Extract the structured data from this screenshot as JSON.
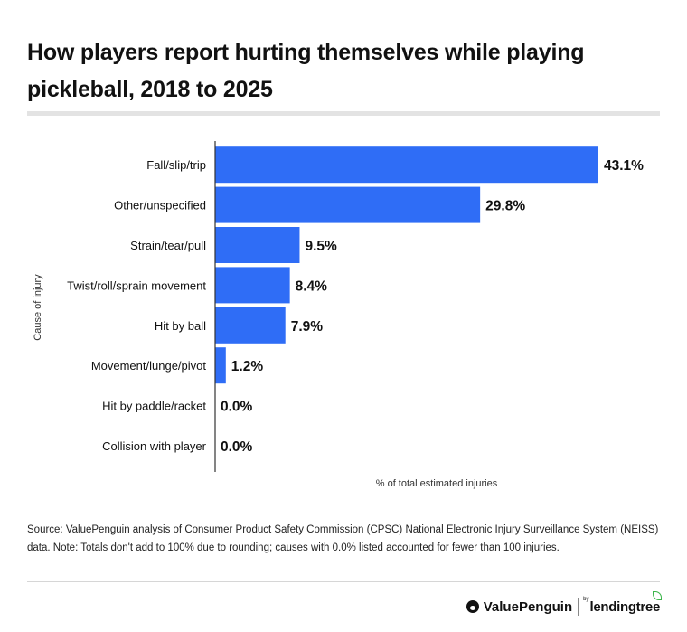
{
  "title": "How players report hurting themselves while playing pickleball, 2018 to 2025",
  "source": "Source: ValuePenguin analysis of Consumer Product Safety Commission (CPSC) National Electronic Injury Surveillance System (NEISS) data. Note: Totals don't add to 100% due to rounding; causes with 0.0% listed accounted for fewer than 100 injuries.",
  "brand": {
    "primary": "ValuePenguin",
    "by": "by",
    "secondary": "lendingtree",
    "primary_icon": "penguin-icon",
    "secondary_icon": "leaf-icon"
  },
  "colors": {
    "bar": "#2f6df6",
    "axis": "#333333",
    "text": "#111111"
  },
  "chart_data": {
    "type": "bar",
    "orientation": "horizontal",
    "categories": [
      "Fall/slip/trip",
      "Other/unspecified",
      "Strain/tear/pull",
      "Twist/roll/sprain movement",
      "Hit by ball",
      "Movement/lunge/pivot",
      "Hit by paddle/racket",
      "Collision with player"
    ],
    "values": [
      43.1,
      29.8,
      9.5,
      8.4,
      7.9,
      1.2,
      0.0,
      0.0
    ],
    "data_labels": [
      "43.1%",
      "29.8%",
      "9.5%",
      "8.4%",
      "7.9%",
      "1.2%",
      "0.0%",
      "0.0%"
    ],
    "xlabel": "% of total estimated injuries",
    "ylabel": "Cause of injury",
    "xlim": [
      0,
      43.1
    ],
    "grid": false,
    "legend": "none"
  }
}
